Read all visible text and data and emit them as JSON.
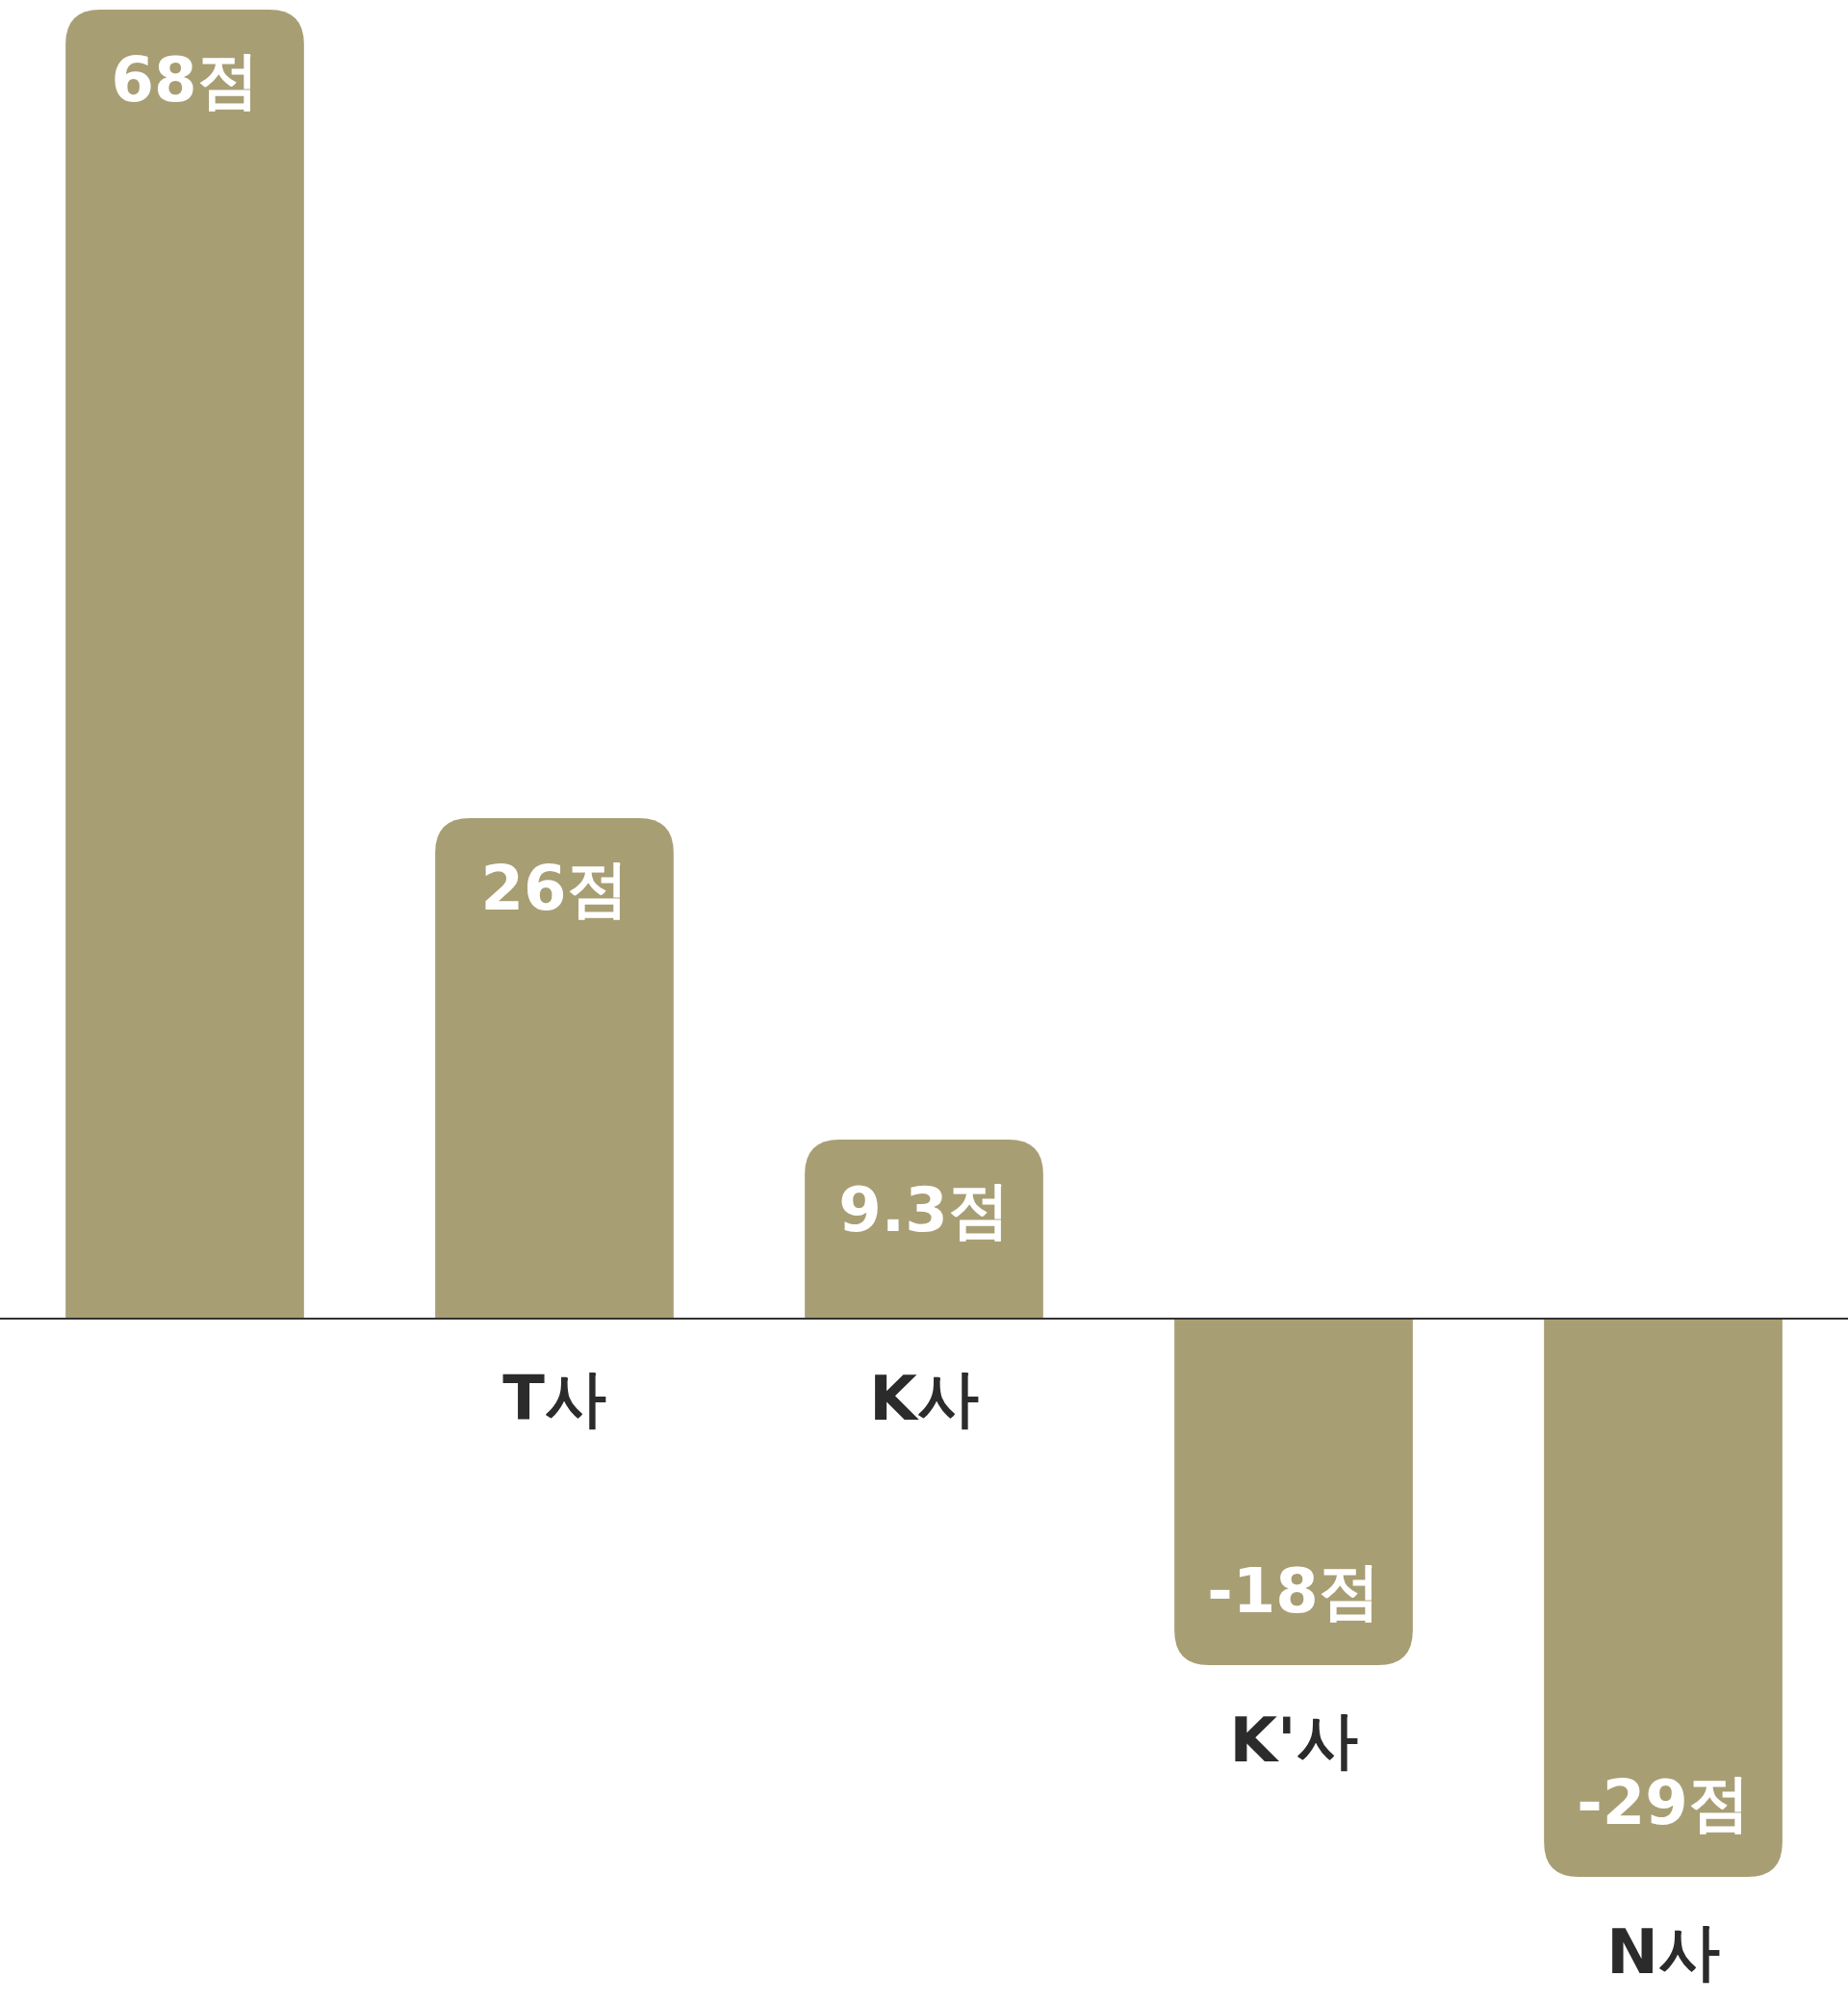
{
  "chart_data": {
    "type": "bar",
    "categories": [
      null,
      "T사",
      "K사",
      "K'사",
      "N사"
    ],
    "values": [
      68,
      26,
      9.3,
      -18,
      -29
    ],
    "value_labels": [
      "68점",
      "26점",
      "9.3점",
      "-18점",
      "-29점"
    ],
    "color": "#a89e74"
  }
}
